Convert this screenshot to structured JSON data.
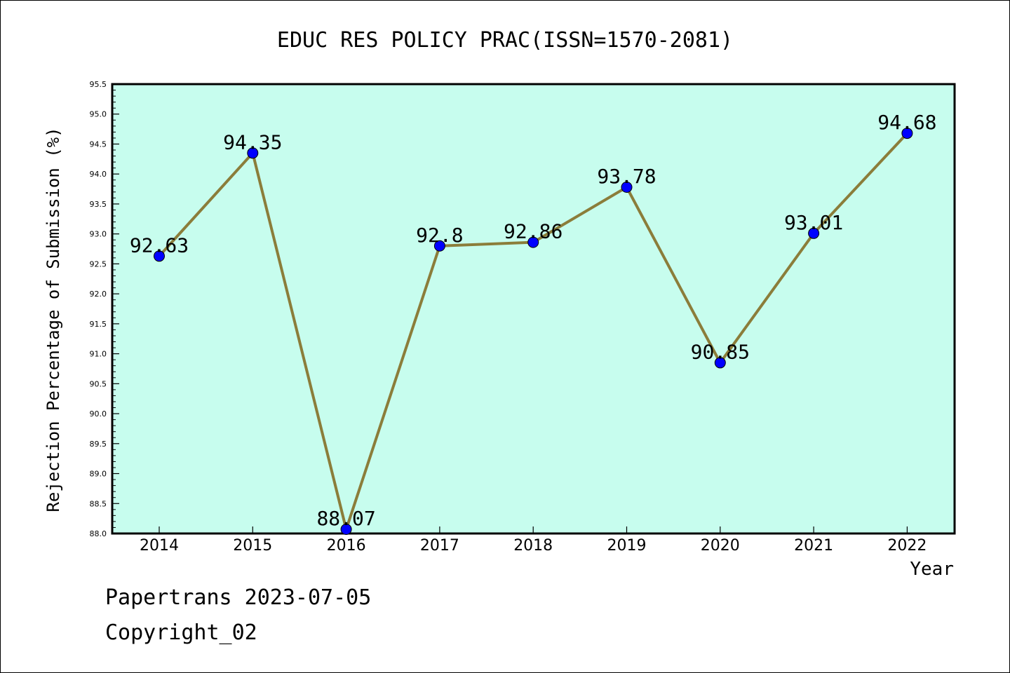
{
  "chart_data": {
    "type": "line",
    "title": "EDUC RES POLICY PRAC(ISSN=1570-2081)",
    "xlabel": "Year",
    "ylabel": "Rejection Percentage of Submission (%)",
    "categories": [
      "2014",
      "2015",
      "2016",
      "2017",
      "2018",
      "2019",
      "2020",
      "2021",
      "2022"
    ],
    "series": [
      {
        "values": [
          92.63,
          94.35,
          88.07,
          92.8,
          92.86,
          93.78,
          90.85,
          93.01,
          94.68
        ],
        "labels": [
          "92.63",
          "94.35",
          "88.07",
          "92.8",
          "92.86",
          "93.78",
          "90.85",
          "93.01",
          "94.68"
        ]
      }
    ],
    "ylim": [
      88.0,
      95.5
    ],
    "yticks": [
      "88.0",
      "88.5",
      "89.0",
      "89.5",
      "90.0",
      "90.5",
      "91.0",
      "91.5",
      "92.0",
      "92.5",
      "93.0",
      "93.5",
      "94.0",
      "94.5",
      "95.0",
      "95.5"
    ],
    "grid": false,
    "colors": {
      "plot_background": "#c7fdee",
      "line": "#8b7d3a",
      "marker": "#0000ff"
    }
  },
  "footer": {
    "line1": "Papertrans 2023-07-05",
    "line2": "Copyright_02"
  }
}
